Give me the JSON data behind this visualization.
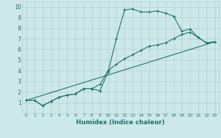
{
  "xlabel": "Humidex (Indice chaleur)",
  "bg_color": "#cce8e8",
  "grid_color": "#b0cccc",
  "line_color": "#1a6e6a",
  "xlim": [
    -0.5,
    23.5
  ],
  "ylim": [
    0,
    10.5
  ],
  "xticks": [
    0,
    1,
    2,
    3,
    4,
    5,
    6,
    7,
    8,
    9,
    10,
    11,
    12,
    13,
    14,
    15,
    16,
    17,
    18,
    19,
    20,
    21,
    22,
    23
  ],
  "yticks": [
    1,
    2,
    3,
    4,
    5,
    6,
    7,
    8,
    9,
    10
  ],
  "curve1_x": [
    0,
    1,
    2,
    3,
    4,
    5,
    6,
    7,
    8,
    9,
    10,
    11,
    12,
    13,
    14,
    15,
    16,
    17,
    18,
    19,
    20,
    21,
    22,
    23
  ],
  "curve1_y": [
    1.2,
    1.2,
    0.7,
    1.1,
    1.5,
    1.7,
    1.8,
    2.3,
    2.3,
    2.1,
    3.9,
    7.0,
    9.7,
    9.8,
    9.5,
    9.5,
    9.6,
    9.4,
    9.1,
    7.7,
    7.9,
    7.1,
    6.6,
    6.7
  ],
  "curve2_x": [
    0,
    1,
    2,
    3,
    4,
    5,
    6,
    7,
    8,
    9,
    10,
    11,
    12,
    13,
    14,
    15,
    16,
    17,
    18,
    19,
    20,
    21,
    22,
    23
  ],
  "curve2_y": [
    1.2,
    1.2,
    0.7,
    1.1,
    1.5,
    1.7,
    1.8,
    2.3,
    2.3,
    2.7,
    4.0,
    4.6,
    5.1,
    5.5,
    5.9,
    6.3,
    6.4,
    6.6,
    7.0,
    7.4,
    7.6,
    7.1,
    6.6,
    6.7
  ],
  "curve3_x": [
    0,
    23
  ],
  "curve3_y": [
    1.2,
    6.7
  ]
}
